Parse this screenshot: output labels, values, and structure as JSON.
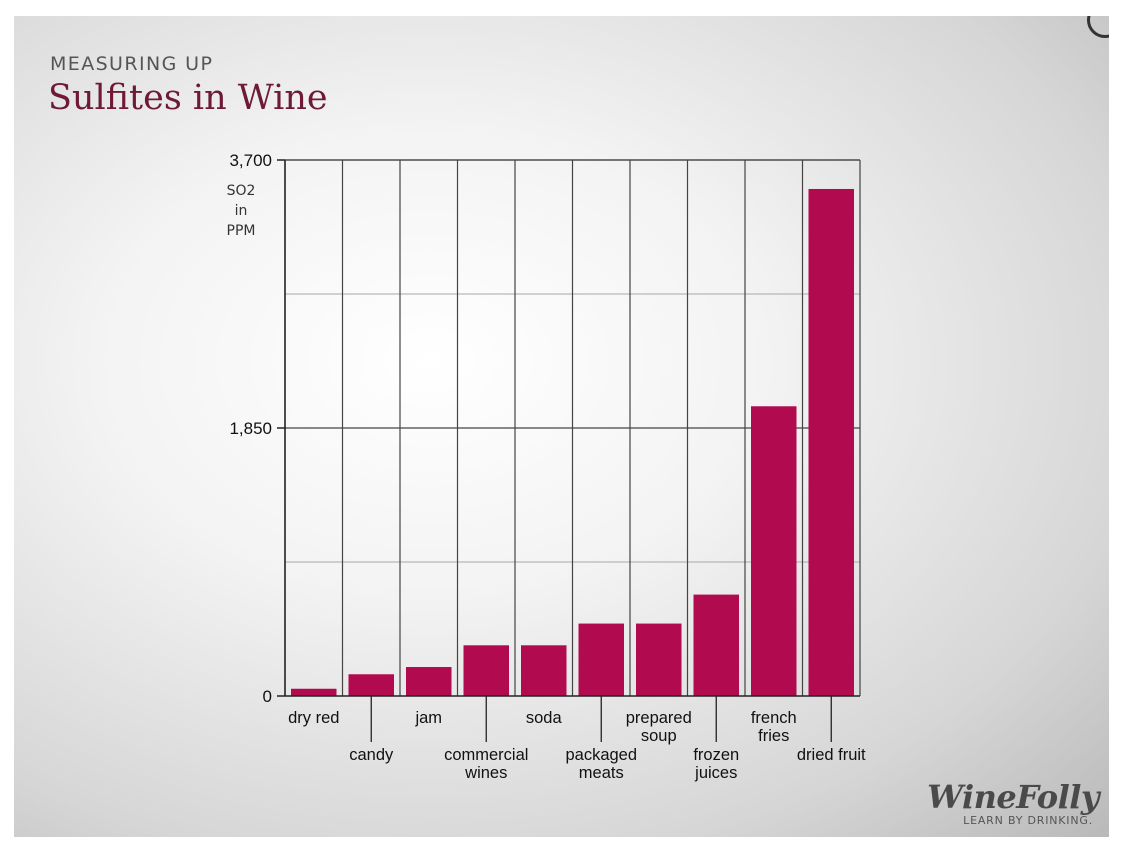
{
  "kicker": "MEASURING UP",
  "title": "Sulfites in Wine",
  "logo": {
    "name": "WineFolly",
    "tagline": "LEARN BY DRINKING."
  },
  "chart_data": {
    "type": "bar",
    "ylabel": [
      "SO2",
      "in",
      "PPM"
    ],
    "ylim": [
      0,
      3700
    ],
    "yticks": [
      "0",
      "1,850",
      "3,700"
    ],
    "ytick_values": [
      0,
      1850,
      3700
    ],
    "grid": true,
    "bar_color": "#b20a4e",
    "categories": [
      [
        "dry red"
      ],
      [
        "candy"
      ],
      [
        "jam"
      ],
      [
        "commercial",
        "wines"
      ],
      [
        "soda"
      ],
      [
        "packaged",
        "meats"
      ],
      [
        "prepared",
        "soup"
      ],
      [
        "frozen",
        "juices"
      ],
      [
        "french",
        "fries"
      ],
      [
        "dried fruit"
      ]
    ],
    "values": [
      50,
      150,
      200,
      350,
      350,
      500,
      500,
      700,
      2000,
      3500
    ]
  }
}
